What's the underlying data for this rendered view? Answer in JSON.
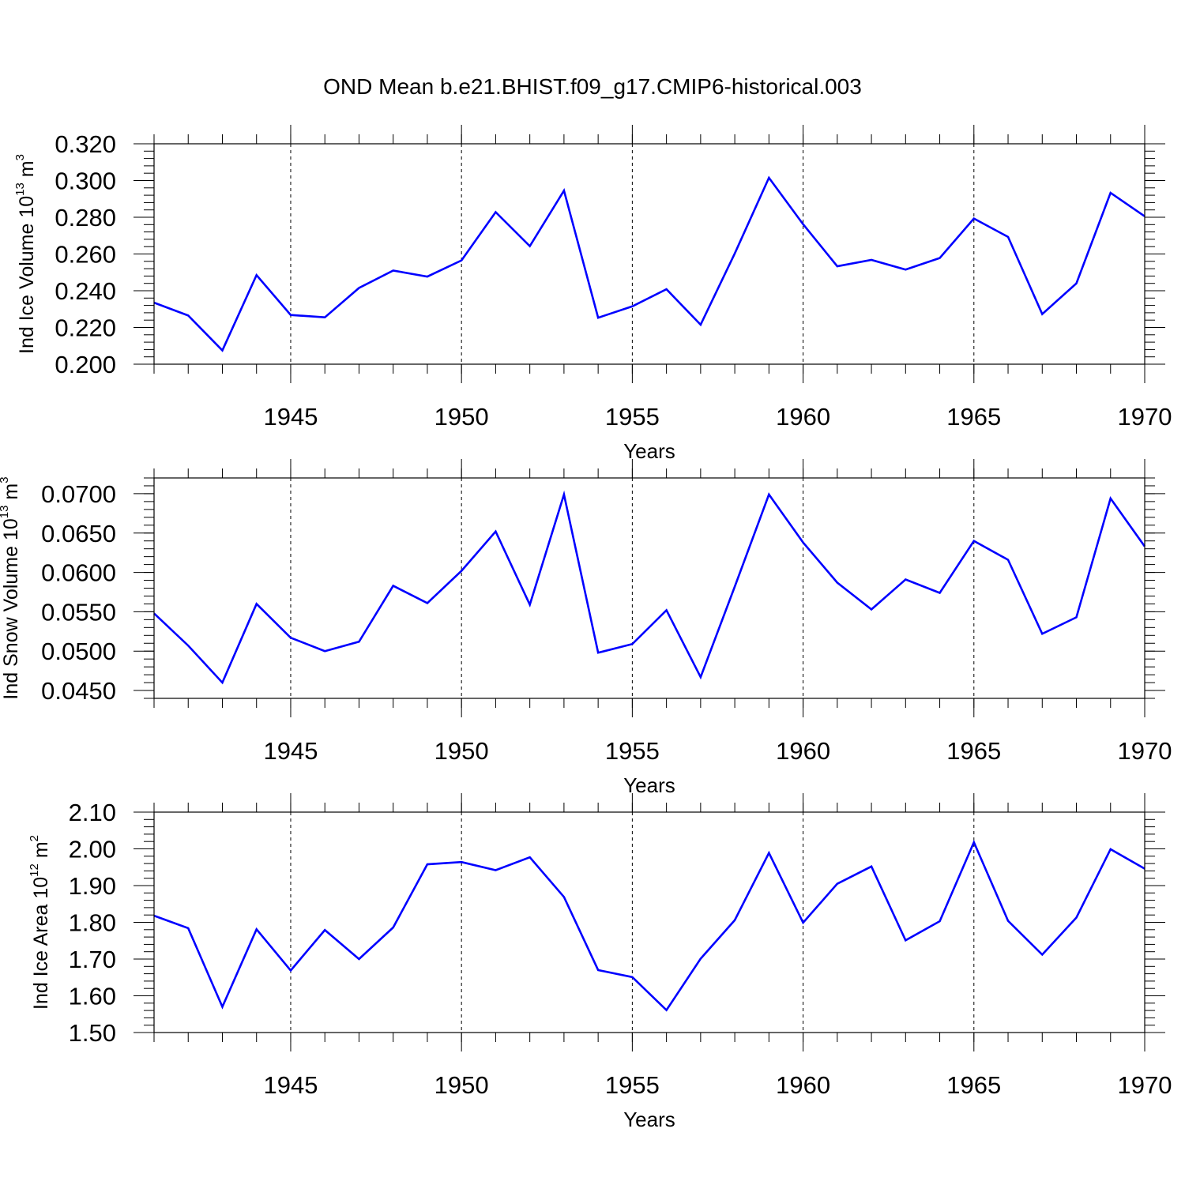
{
  "title": "OND Mean b.e21.BHIST.f09_g17.CMIP6-historical.003",
  "chart_data": [
    {
      "type": "line",
      "ylabel": "Ind Ice Volume 10",
      "ylabel_exp": "13",
      "ylabel_unit": " m",
      "ylabel_unit_exp": "3",
      "xlabel": "Years",
      "xlim": [
        1941,
        1970
      ],
      "ylim": [
        0.2,
        0.32
      ],
      "ytick_values": [
        0.2,
        0.22,
        0.24,
        0.26,
        0.28,
        0.3,
        0.32
      ],
      "ytick_labels": [
        "0.200",
        "0.220",
        "0.240",
        "0.260",
        "0.280",
        "0.300",
        "0.320"
      ],
      "xtick_values": [
        1945,
        1950,
        1955,
        1960,
        1965,
        1970
      ],
      "xtick_labels": [
        "1945",
        "1950",
        "1955",
        "1960",
        "1965",
        "1970"
      ],
      "line_color": "#0000ff",
      "series": [
        {
          "name": "Ind Ice Volume",
          "x": [
            1941,
            1942,
            1943,
            1944,
            1945,
            1946,
            1947,
            1948,
            1949,
            1950,
            1951,
            1952,
            1953,
            1954,
            1955,
            1956,
            1957,
            1958,
            1959,
            1960,
            1961,
            1962,
            1963,
            1964,
            1965,
            1966,
            1967,
            1968,
            1969,
            1970
          ],
          "values": [
            0.2335,
            0.2265,
            0.2075,
            0.2485,
            0.2268,
            0.2255,
            0.2415,
            0.251,
            0.2477,
            0.2565,
            0.2828,
            0.2643,
            0.2945,
            0.2253,
            0.2315,
            0.2408,
            0.2215,
            0.2603,
            0.3015,
            0.2762,
            0.2533,
            0.2568,
            0.2515,
            0.2578,
            0.2793,
            0.2693,
            0.2273,
            0.244,
            0.2933,
            0.2805
          ]
        }
      ]
    },
    {
      "type": "line",
      "ylabel": "Ind Snow Volume 10",
      "ylabel_exp": "13",
      "ylabel_unit": " m",
      "ylabel_unit_exp": "3",
      "xlabel": "Years",
      "xlim": [
        1941,
        1970
      ],
      "ylim": [
        0.044,
        0.072
      ],
      "ytick_values": [
        0.045,
        0.05,
        0.055,
        0.06,
        0.065,
        0.07
      ],
      "ytick_labels": [
        "0.0450",
        "0.0500",
        "0.0550",
        "0.0600",
        "0.0650",
        "0.0700"
      ],
      "xtick_values": [
        1945,
        1950,
        1955,
        1960,
        1965,
        1970
      ],
      "xtick_labels": [
        "1945",
        "1950",
        "1955",
        "1960",
        "1965",
        "1970"
      ],
      "line_color": "#0000ff",
      "series": [
        {
          "name": "Ind Snow Volume",
          "x": [
            1941,
            1942,
            1943,
            1944,
            1945,
            1946,
            1947,
            1948,
            1949,
            1950,
            1951,
            1952,
            1953,
            1954,
            1955,
            1956,
            1957,
            1958,
            1959,
            1960,
            1961,
            1962,
            1963,
            1964,
            1965,
            1966,
            1967,
            1968,
            1969,
            1970
          ],
          "values": [
            0.0548,
            0.0507,
            0.046,
            0.056,
            0.0517,
            0.05,
            0.0512,
            0.0583,
            0.0561,
            0.0602,
            0.0652,
            0.0559,
            0.0699,
            0.0498,
            0.0509,
            0.0552,
            0.0467,
            0.0582,
            0.0699,
            0.0638,
            0.0587,
            0.0553,
            0.0591,
            0.0574,
            0.064,
            0.0616,
            0.0522,
            0.0543,
            0.0694,
            0.0633
          ]
        }
      ]
    },
    {
      "type": "line",
      "ylabel": "Ind Ice Area 10",
      "ylabel_exp": "12",
      "ylabel_unit": " m",
      "ylabel_unit_exp": "2",
      "xlabel": "Years",
      "xlim": [
        1941,
        1970
      ],
      "ylim": [
        1.5,
        2.1
      ],
      "ytick_values": [
        1.5,
        1.6,
        1.7,
        1.8,
        1.9,
        2.0,
        2.1
      ],
      "ytick_labels": [
        "1.50",
        "1.60",
        "1.70",
        "1.80",
        "1.90",
        "2.00",
        "2.10"
      ],
      "xtick_values": [
        1945,
        1950,
        1955,
        1960,
        1965,
        1970
      ],
      "xtick_labels": [
        "1945",
        "1950",
        "1955",
        "1960",
        "1965",
        "1970"
      ],
      "line_color": "#0000ff",
      "series": [
        {
          "name": "Ind Ice Area",
          "x": [
            1941,
            1942,
            1943,
            1944,
            1945,
            1946,
            1947,
            1948,
            1949,
            1950,
            1951,
            1952,
            1953,
            1954,
            1955,
            1956,
            1957,
            1958,
            1959,
            1960,
            1961,
            1962,
            1963,
            1964,
            1965,
            1966,
            1967,
            1968,
            1969,
            1970
          ],
          "values": [
            1.818,
            1.784,
            1.57,
            1.781,
            1.669,
            1.779,
            1.7,
            1.786,
            1.958,
            1.964,
            1.942,
            1.977,
            1.869,
            1.67,
            1.651,
            1.561,
            1.701,
            1.806,
            1.989,
            1.799,
            1.905,
            1.952,
            1.751,
            1.803,
            2.018,
            1.804,
            1.712,
            1.813,
            1.999,
            1.946
          ]
        }
      ]
    }
  ]
}
